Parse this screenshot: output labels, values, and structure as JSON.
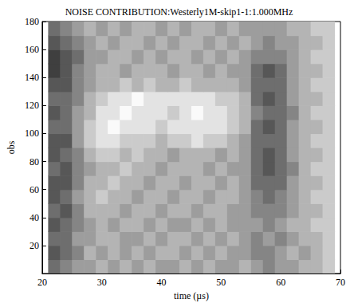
{
  "chart_data": {
    "type": "heatmap",
    "title": "NOISE CONTRIBUTION:Westerly1M-skip1-1:1.000MHz",
    "x_label": "time (µs)",
    "y_label": "obs",
    "xlim": [
      20,
      70
    ],
    "xticks": [
      20,
      30,
      40,
      50,
      60,
      70
    ],
    "ylim": [
      0,
      180
    ],
    "yticks": [
      20,
      40,
      60,
      80,
      100,
      120,
      140,
      160,
      180
    ],
    "zlim": [
      0,
      9
    ],
    "x": [
      22,
      24,
      26,
      28,
      30,
      32,
      34,
      36,
      38,
      40,
      42,
      44,
      46,
      48,
      50,
      52,
      54,
      56,
      58,
      60,
      62,
      64,
      66,
      68
    ],
    "y": [
      5,
      15,
      25,
      35,
      45,
      55,
      65,
      75,
      85,
      95,
      105,
      115,
      125,
      135,
      145,
      155,
      165,
      175
    ],
    "values": [
      [
        3,
        4,
        5,
        5,
        6,
        5,
        6,
        5,
        6,
        5,
        5,
        6,
        5,
        6,
        5,
        5,
        6,
        5,
        4,
        5,
        5,
        6,
        6,
        7
      ],
      [
        2,
        3,
        4,
        6,
        5,
        6,
        5,
        6,
        5,
        6,
        6,
        5,
        6,
        5,
        6,
        5,
        5,
        4,
        4,
        5,
        6,
        5,
        6,
        7
      ],
      [
        3,
        3,
        5,
        5,
        6,
        6,
        5,
        5,
        6,
        5,
        6,
        6,
        5,
        6,
        5,
        6,
        5,
        4,
        5,
        4,
        5,
        6,
        6,
        7
      ],
      [
        2,
        3,
        4,
        5,
        6,
        5,
        6,
        6,
        5,
        6,
        5,
        5,
        6,
        5,
        6,
        5,
        5,
        5,
        4,
        5,
        6,
        6,
        7,
        7
      ],
      [
        3,
        2,
        4,
        6,
        6,
        6,
        5,
        6,
        6,
        5,
        6,
        6,
        5,
        6,
        6,
        5,
        5,
        4,
        4,
        4,
        5,
        6,
        6,
        7
      ],
      [
        2,
        3,
        5,
        6,
        7,
        6,
        6,
        5,
        6,
        6,
        5,
        6,
        6,
        5,
        6,
        6,
        5,
        4,
        3,
        4,
        5,
        6,
        7,
        7
      ],
      [
        2,
        2,
        4,
        6,
        6,
        7,
        6,
        6,
        5,
        6,
        6,
        5,
        6,
        6,
        5,
        6,
        5,
        3,
        3,
        3,
        5,
        6,
        6,
        7
      ],
      [
        3,
        2,
        4,
        5,
        6,
        6,
        7,
        6,
        6,
        5,
        6,
        6,
        6,
        5,
        6,
        5,
        5,
        3,
        2,
        3,
        4,
        6,
        7,
        7
      ],
      [
        2,
        3,
        4,
        6,
        7,
        7,
        6,
        7,
        6,
        6,
        5,
        6,
        6,
        6,
        5,
        6,
        5,
        3,
        2,
        3,
        5,
        6,
        6,
        7
      ],
      [
        2,
        2,
        5,
        7,
        8,
        8,
        7,
        7,
        7,
        6,
        7,
        7,
        8,
        7,
        7,
        6,
        5,
        3,
        3,
        3,
        5,
        6,
        7,
        7
      ],
      [
        3,
        3,
        5,
        7,
        8,
        9,
        8,
        8,
        8,
        7,
        8,
        8,
        8,
        8,
        8,
        7,
        6,
        3,
        2,
        3,
        5,
        6,
        6,
        7
      ],
      [
        2,
        3,
        5,
        6,
        8,
        8,
        9,
        8,
        8,
        8,
        7,
        8,
        9,
        8,
        8,
        7,
        6,
        4,
        3,
        3,
        4,
        6,
        7,
        7
      ],
      [
        3,
        3,
        4,
        6,
        7,
        8,
        8,
        9,
        8,
        8,
        8,
        8,
        8,
        8,
        7,
        7,
        6,
        3,
        2,
        3,
        5,
        6,
        6,
        7
      ],
      [
        2,
        2,
        4,
        5,
        6,
        6,
        7,
        6,
        7,
        6,
        6,
        7,
        6,
        6,
        6,
        6,
        5,
        3,
        3,
        3,
        5,
        6,
        7,
        7
      ],
      [
        1,
        2,
        4,
        5,
        6,
        6,
        5,
        6,
        6,
        6,
        5,
        6,
        6,
        5,
        6,
        5,
        5,
        3,
        2,
        3,
        5,
        6,
        6,
        7
      ],
      [
        1,
        2,
        3,
        5,
        5,
        6,
        6,
        5,
        6,
        5,
        6,
        6,
        5,
        6,
        5,
        6,
        5,
        4,
        4,
        4,
        5,
        6,
        7,
        7
      ],
      [
        2,
        3,
        4,
        5,
        6,
        5,
        6,
        6,
        5,
        6,
        5,
        6,
        6,
        5,
        6,
        5,
        6,
        5,
        4,
        5,
        5,
        6,
        6,
        7
      ],
      [
        3,
        4,
        5,
        6,
        5,
        6,
        5,
        6,
        6,
        5,
        6,
        5,
        6,
        6,
        5,
        6,
        5,
        5,
        5,
        5,
        6,
        6,
        7,
        7
      ]
    ]
  }
}
